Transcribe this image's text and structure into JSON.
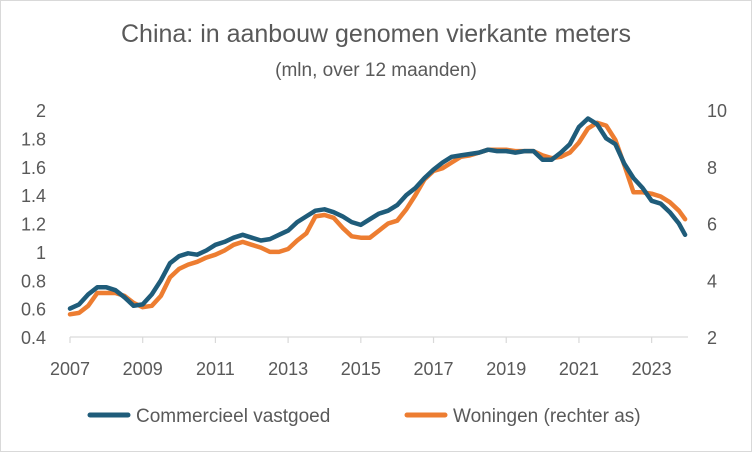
{
  "chart_data": {
    "type": "line",
    "title": "China: in aanbouw genomen vierkante meters",
    "subtitle": "(mln, over 12 maanden)",
    "x_ticks": [
      "2007",
      "2009",
      "2011",
      "2013",
      "2015",
      "2017",
      "2019",
      "2021",
      "2023"
    ],
    "xlim": [
      2007.0,
      2024.0
    ],
    "y_left": {
      "ticks": [
        "0.4",
        "0.6",
        "0.8",
        "1",
        "1.2",
        "1.4",
        "1.6",
        "1.8",
        "2"
      ],
      "lim": [
        0.4,
        2.0
      ]
    },
    "y_right": {
      "ticks": [
        "2",
        "4",
        "6",
        "8",
        "10"
      ],
      "lim": [
        2,
        10
      ]
    },
    "grid": false,
    "legend_position": "bottom",
    "series": [
      {
        "name": "Commercieel vastgoed",
        "axis": "left",
        "color": "#1F5C7A",
        "x": [
          2007.0,
          2007.25,
          2007.5,
          2007.75,
          2008.0,
          2008.25,
          2008.5,
          2008.75,
          2009.0,
          2009.25,
          2009.5,
          2009.75,
          2010.0,
          2010.25,
          2010.5,
          2010.75,
          2011.0,
          2011.25,
          2011.5,
          2011.75,
          2012.0,
          2012.25,
          2012.5,
          2012.75,
          2013.0,
          2013.25,
          2013.5,
          2013.75,
          2014.0,
          2014.25,
          2014.5,
          2014.75,
          2015.0,
          2015.25,
          2015.5,
          2015.75,
          2016.0,
          2016.25,
          2016.5,
          2016.75,
          2017.0,
          2017.25,
          2017.5,
          2017.75,
          2018.0,
          2018.25,
          2018.5,
          2018.75,
          2019.0,
          2019.25,
          2019.5,
          2019.75,
          2020.0,
          2020.25,
          2020.5,
          2020.75,
          2021.0,
          2021.25,
          2021.5,
          2021.75,
          2022.0,
          2022.25,
          2022.5,
          2022.75,
          2023.0,
          2023.25,
          2023.5,
          2023.75,
          2023.92
        ],
        "values": [
          0.6,
          0.63,
          0.7,
          0.75,
          0.75,
          0.73,
          0.68,
          0.62,
          0.63,
          0.7,
          0.8,
          0.92,
          0.97,
          0.99,
          0.98,
          1.01,
          1.05,
          1.07,
          1.1,
          1.12,
          1.1,
          1.08,
          1.09,
          1.12,
          1.15,
          1.21,
          1.25,
          1.29,
          1.3,
          1.28,
          1.25,
          1.21,
          1.19,
          1.23,
          1.27,
          1.29,
          1.33,
          1.4,
          1.45,
          1.52,
          1.58,
          1.63,
          1.67,
          1.68,
          1.69,
          1.7,
          1.72,
          1.71,
          1.71,
          1.7,
          1.71,
          1.71,
          1.65,
          1.65,
          1.7,
          1.76,
          1.88,
          1.94,
          1.9,
          1.8,
          1.76,
          1.62,
          1.52,
          1.45,
          1.36,
          1.34,
          1.28,
          1.2,
          1.12
        ]
      },
      {
        "name": "Woningen (rechter as)",
        "axis": "right",
        "color": "#ED7D31",
        "x": [
          2007.0,
          2007.25,
          2007.5,
          2007.75,
          2008.0,
          2008.25,
          2008.5,
          2008.75,
          2009.0,
          2009.25,
          2009.5,
          2009.75,
          2010.0,
          2010.25,
          2010.5,
          2010.75,
          2011.0,
          2011.25,
          2011.5,
          2011.75,
          2012.0,
          2012.25,
          2012.5,
          2012.75,
          2013.0,
          2013.25,
          2013.5,
          2013.75,
          2014.0,
          2014.25,
          2014.5,
          2014.75,
          2015.0,
          2015.25,
          2015.5,
          2015.75,
          2016.0,
          2016.25,
          2016.5,
          2016.75,
          2017.0,
          2017.25,
          2017.5,
          2017.75,
          2018.0,
          2018.25,
          2018.5,
          2018.75,
          2019.0,
          2019.25,
          2019.5,
          2019.75,
          2020.0,
          2020.25,
          2020.5,
          2020.75,
          2021.0,
          2021.25,
          2021.5,
          2021.75,
          2022.0,
          2022.25,
          2022.5,
          2022.75,
          2023.0,
          2023.25,
          2023.5,
          2023.75,
          2023.92
        ],
        "values": [
          2.8,
          2.85,
          3.1,
          3.55,
          3.55,
          3.55,
          3.45,
          3.2,
          3.05,
          3.1,
          3.45,
          4.1,
          4.4,
          4.55,
          4.65,
          4.8,
          4.9,
          5.05,
          5.25,
          5.35,
          5.25,
          5.15,
          5.0,
          5.0,
          5.1,
          5.4,
          5.65,
          6.25,
          6.3,
          6.2,
          5.85,
          5.55,
          5.5,
          5.5,
          5.75,
          6.0,
          6.1,
          6.5,
          7.0,
          7.55,
          7.85,
          7.95,
          8.15,
          8.35,
          8.4,
          8.5,
          8.6,
          8.6,
          8.6,
          8.55,
          8.55,
          8.55,
          8.4,
          8.3,
          8.35,
          8.5,
          8.85,
          9.35,
          9.55,
          9.45,
          8.95,
          8.05,
          7.1,
          7.1,
          7.05,
          6.95,
          6.75,
          6.45,
          6.15
        ]
      }
    ]
  }
}
